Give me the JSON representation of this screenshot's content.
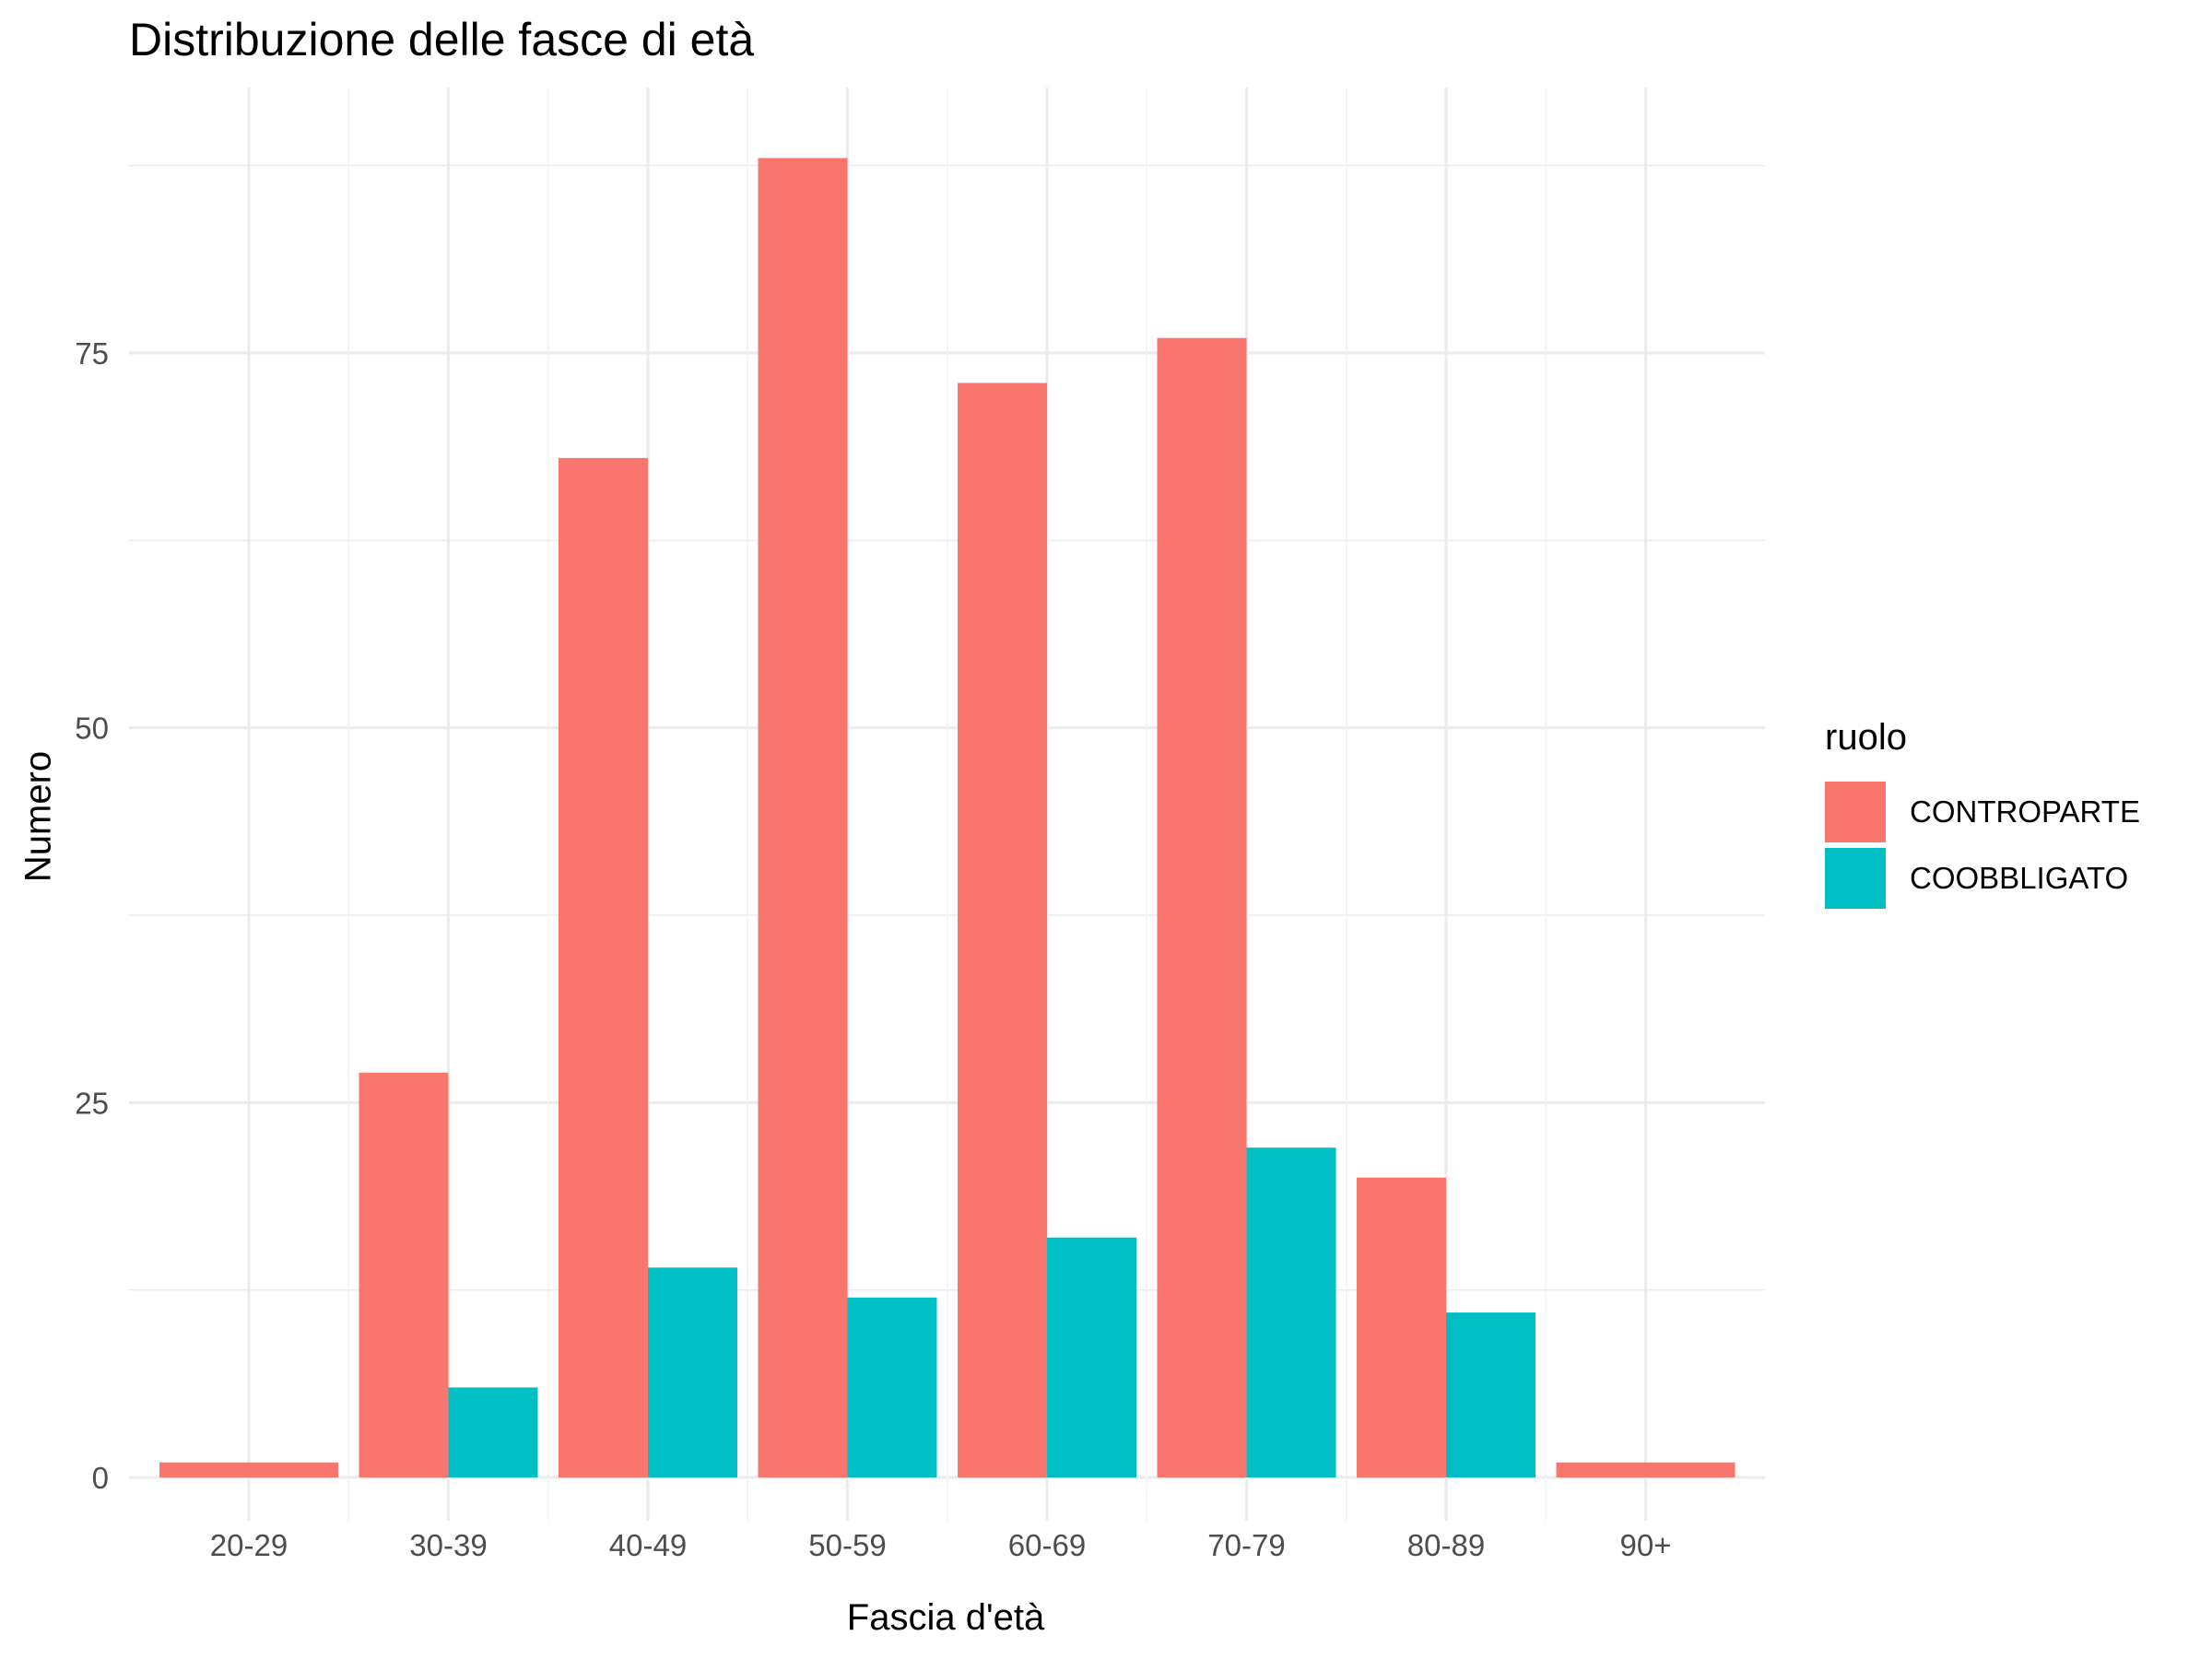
{
  "chart_data": {
    "type": "bar",
    "title": "Distribuzione delle fasce di età",
    "xlabel": "Fascia d'età",
    "ylabel": "Numero",
    "categories": [
      "20-29",
      "30-39",
      "40-49",
      "50-59",
      "60-69",
      "70-79",
      "80-89",
      "90+"
    ],
    "series": [
      {
        "name": "CONTROPARTE",
        "color": "#F8766D",
        "values": [
          1,
          27,
          68,
          88,
          73,
          76,
          20,
          1
        ]
      },
      {
        "name": "COOBBLIGATO",
        "color": "#00BFC4",
        "values": [
          null,
          6,
          14,
          12,
          16,
          22,
          11,
          null
        ]
      }
    ],
    "yticks": [
      0,
      25,
      50,
      75
    ],
    "ylim": [
      0,
      88
    ],
    "grid": true,
    "legend": {
      "title": "ruolo",
      "position": "right"
    }
  }
}
